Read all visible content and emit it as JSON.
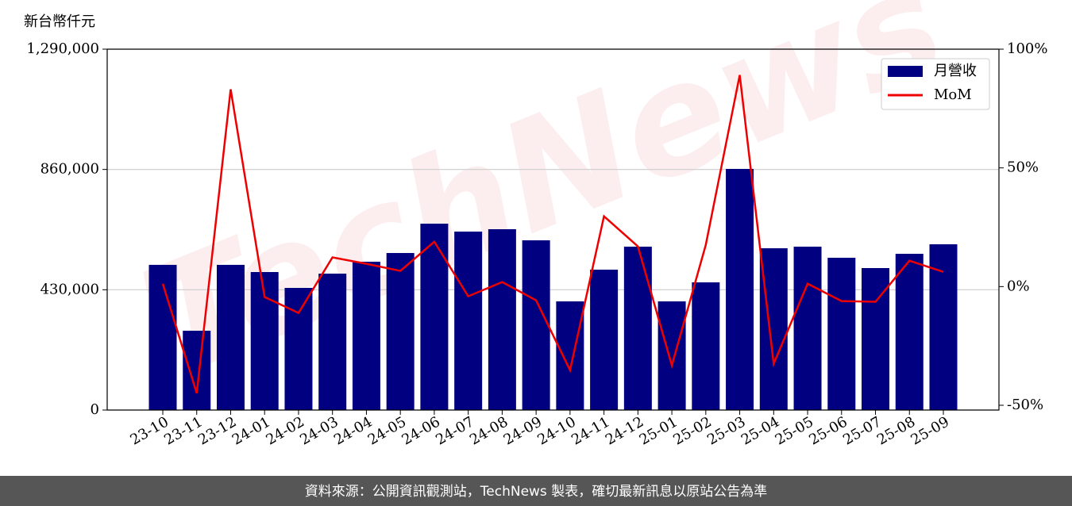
{
  "chart_data": {
    "type": "bar",
    "ylabel": "新台幣仟元",
    "watermark": "TechNews",
    "footer": "資料來源：公開資訊觀測站，TechNews 製表，確切最新訊息以原站公告為準",
    "categories": [
      "23-10",
      "23-11",
      "23-12",
      "24-01",
      "24-02",
      "24-03",
      "24-04",
      "24-05",
      "24-06",
      "24-07",
      "24-08",
      "24-09",
      "24-10",
      "24-11",
      "24-12",
      "25-01",
      "25-02",
      "25-03",
      "25-04",
      "25-05",
      "25-06",
      "25-07",
      "25-08",
      "25-09"
    ],
    "series": [
      {
        "name": "月營收",
        "type": "bar",
        "color": "#000080",
        "values": [
          519000,
          283500,
          519000,
          493300,
          436600,
          487600,
          530100,
          561300,
          666200,
          637900,
          646400,
          606700,
          388400,
          501800,
          584000,
          388400,
          456400,
          862000,
          578300,
          584000,
          544300,
          507500,
          558500,
          592500
        ]
      },
      {
        "name": "MoM",
        "type": "line",
        "axis": "y2",
        "color": "#ee0000",
        "values": [
          1.2,
          -44.9,
          83.1,
          -4.4,
          -11.1,
          12.3,
          9.6,
          6.6,
          18.9,
          -4.1,
          1.9,
          -5.8,
          -35.2,
          29.6,
          16.9,
          -33.2,
          17.6,
          89.1,
          -32.5,
          1.2,
          -6.1,
          -6.4,
          10.9,
          6.2
        ]
      }
    ],
    "ylim": [
      0,
      1290000
    ],
    "yticks": [
      0,
      {
        "value": 430000,
        "label": "430,000"
      },
      {
        "value": 860000,
        "label": "860,000"
      },
      {
        "value": 1290000,
        "label": "1,290,000"
      }
    ],
    "y2lim": [
      -52,
      100
    ],
    "y2ticks": [
      {
        "value": -50,
        "label": "-50%"
      },
      {
        "value": 0,
        "label": "0%"
      },
      {
        "value": 50,
        "label": "50%"
      },
      {
        "value": 100,
        "label": "100%"
      }
    ],
    "grid": true,
    "legend": "upper right"
  }
}
